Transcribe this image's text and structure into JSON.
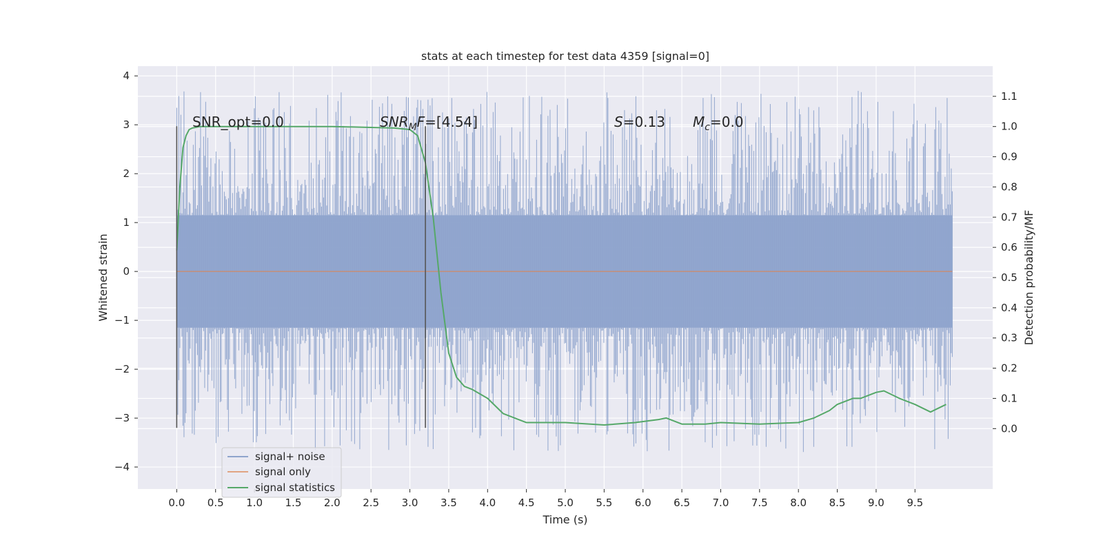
{
  "chart_data": {
    "type": "line",
    "title": "stats at each timestep for test data 4359 [signal=0]",
    "xlabel": "Time (s)",
    "ylabel_left": "Whitened strain",
    "ylabel_right": "Detection probability/MF",
    "xlim": [
      -0.5,
      10.5
    ],
    "ylim_left": [
      -4.45,
      4.2
    ],
    "ylim_right": [
      -0.2,
      1.2
    ],
    "x_ticks": [
      0.0,
      0.5,
      1.0,
      1.5,
      2.0,
      2.5,
      3.0,
      3.5,
      4.0,
      4.5,
      5.0,
      5.5,
      6.0,
      6.5,
      7.0,
      7.5,
      8.0,
      8.5,
      9.0,
      9.5
    ],
    "x_tick_labels": [
      "0.0",
      "0.5",
      "1.0",
      "1.5",
      "2.0",
      "2.5",
      "3.0",
      "3.5",
      "4.0",
      "4.5",
      "5.0",
      "5.5",
      "6.0",
      "6.5",
      "7.0",
      "7.5",
      "8.0",
      "8.5",
      "9.0",
      "9.5"
    ],
    "y_ticks_left": [
      -4,
      -3,
      -2,
      -1,
      0,
      1,
      2,
      3,
      4
    ],
    "y_tick_labels_left": [
      "−4",
      "−3",
      "−2",
      "−1",
      "0",
      "1",
      "2",
      "3",
      "4"
    ],
    "y_ticks_right": [
      0.0,
      0.1,
      0.2,
      0.3,
      0.4,
      0.5,
      0.6,
      0.7,
      0.8,
      0.9,
      1.0,
      1.1
    ],
    "y_tick_labels_right": [
      "0.0",
      "0.1",
      "0.2",
      "0.3",
      "0.4",
      "0.5",
      "0.6",
      "0.7",
      "0.8",
      "0.9",
      "1.0",
      "1.1"
    ],
    "grid": true,
    "legend_position": "lower-left",
    "annotations": {
      "snr_opt": "SNR_opt=0.0",
      "snr_mf_italic": "SNR",
      "snr_mf_sub": "M",
      "snr_mf_rest": "F=[4.54]",
      "s_italic": "S",
      "s_rest": "=0.13",
      "mc_italic": "M",
      "mc_sub": "c",
      "mc_rest": "=0.0"
    },
    "vertical_markers": [
      0.0,
      3.2
    ],
    "series": [
      {
        "name": "signal+ noise",
        "axis": "left",
        "color": "#8fa4cc",
        "kind": "noise",
        "x_range": [
          0.0,
          9.98
        ],
        "core_amplitude": 1.15,
        "peak_envelope": [
          3.0,
          -3.0
        ]
      },
      {
        "name": "signal only",
        "axis": "left",
        "color": "#dd8452",
        "x": [
          0.0,
          9.98
        ],
        "y": [
          0.0,
          0.0
        ]
      },
      {
        "name": "signal statistics",
        "axis": "right",
        "color": "#55a868",
        "x": [
          0.0,
          0.04,
          0.08,
          0.12,
          0.16,
          0.2,
          0.3,
          0.5,
          1.0,
          1.5,
          2.0,
          2.5,
          2.8,
          3.0,
          3.1,
          3.2,
          3.3,
          3.4,
          3.5,
          3.6,
          3.7,
          3.8,
          4.0,
          4.2,
          4.5,
          5.0,
          5.5,
          5.9,
          6.2,
          6.3,
          6.5,
          6.8,
          7.0,
          7.5,
          8.0,
          8.2,
          8.4,
          8.5,
          8.7,
          8.8,
          9.0,
          9.1,
          9.3,
          9.5,
          9.7,
          9.9
        ],
        "y": [
          0.59,
          0.8,
          0.93,
          0.97,
          0.99,
          0.995,
          1.0,
          1.0,
          1.0,
          1.0,
          1.0,
          0.997,
          0.995,
          0.99,
          0.97,
          0.88,
          0.7,
          0.45,
          0.25,
          0.17,
          0.14,
          0.13,
          0.1,
          0.05,
          0.02,
          0.02,
          0.012,
          0.02,
          0.03,
          0.035,
          0.015,
          0.015,
          0.02,
          0.015,
          0.02,
          0.035,
          0.06,
          0.08,
          0.1,
          0.1,
          0.12,
          0.125,
          0.1,
          0.08,
          0.055,
          0.08
        ]
      }
    ]
  }
}
